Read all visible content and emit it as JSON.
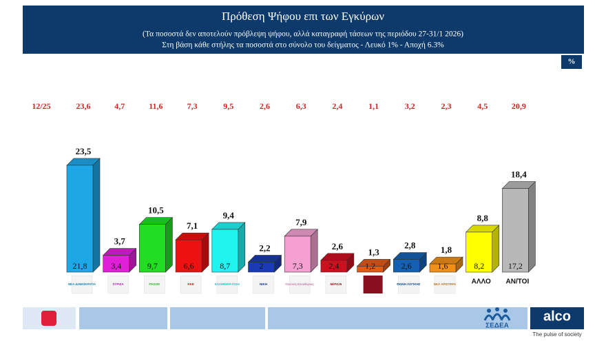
{
  "header": {
    "title": "Πρόθεση Ψήφου επι των Εγκύρων",
    "subtitle": "(Τα ποσοστά δεν αποτελούν πρόβλεψη ψήφου, αλλά καταγραφή τάσεων της περιόδου  27-31/1 2026)",
    "note": "Στη βάση κάθε στήλης τα ποσοστά στο σύνολο του δείγματος - Λευκό 1% - Αποχή 6.3%",
    "unit": "%"
  },
  "chart_data": {
    "type": "bar3d",
    "categories": [
      "ΝΕΑ ΔΗΜΟΚΡΑΤΙΑ",
      "ΣΥΡΙΖΑ",
      "ΠΑΣΟΚ",
      "ΚΚΕ",
      "ΕΛΛΗΝΙΚΗ ΛΥΣΗ",
      "ΝΙΚΗ",
      "Πλεύση Ελευθερίας",
      "ΜέΡΑ25",
      null,
      "ΦΩΝΗ ΛΟΓΙΚΗΣ",
      "ΝΕΑ ΑΡΙΣΤΕΡΑ",
      "ΑΛΛΟ",
      "ΑΝ/ΤΟΙ"
    ],
    "colors": [
      "#1ea7e6",
      "#e020d8",
      "#22dd22",
      "#ee1111",
      "#22f2f0",
      "#1a3bb5",
      "#f4a0d0",
      "#cc1020",
      "#e05a1a",
      "#1560b0",
      "#f0901a",
      "#ffff00",
      "#b8b8b8"
    ],
    "values": [
      23.5,
      3.7,
      10.5,
      7.1,
      9.4,
      2.2,
      7.9,
      2.6,
      1.3,
      2.8,
      1.8,
      8.8,
      18.4
    ],
    "value_labels": [
      "23,5",
      "3,7",
      "10,5",
      "7,1",
      "9,4",
      "2,2",
      "7,9",
      "2,6",
      "1,3",
      "2,8",
      "1,8",
      "8,8",
      "18,4"
    ],
    "raw_values": [
      21.8,
      3.4,
      9.7,
      6.6,
      8.7,
      2,
      7.3,
      2.4,
      1.2,
      2.6,
      1.6,
      8.2,
      17.2
    ],
    "raw_value_labels": [
      "21,8",
      "3,4",
      "9,7",
      "6,6",
      "8,7",
      "2",
      "7,3",
      "2,4",
      "1,2",
      "2,6",
      "1,6",
      "8,2",
      "17,2"
    ],
    "previous": {
      "label": "12/25",
      "values": [
        23.6,
        4.7,
        11.6,
        7.3,
        9.5,
        2.6,
        6.3,
        2.4,
        1.1,
        3.2,
        2.3,
        4.5,
        20.9
      ],
      "value_labels": [
        "23,6",
        "4,7",
        "11,6",
        "7,3",
        "9,5",
        "2,6",
        "6,3",
        "2,4",
        "1,1",
        "3,2",
        "2,3",
        "4,5",
        "20,9"
      ]
    }
  },
  "footer": {
    "brand": "ΣΕΔΕΑ",
    "logo": "alco",
    "tagline": "The pulse of society"
  }
}
